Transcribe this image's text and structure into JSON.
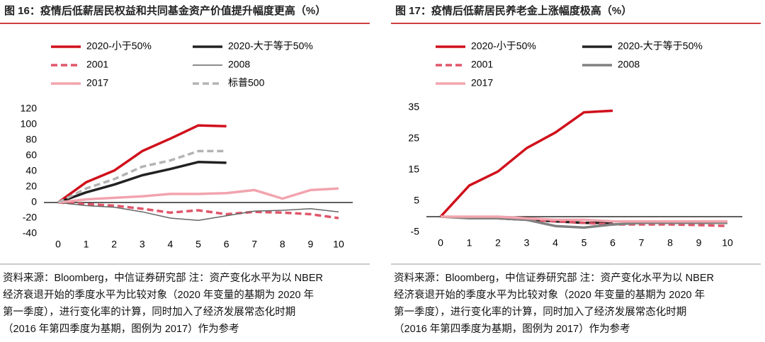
{
  "chart_data": [
    {
      "type": "line",
      "title": "图 16：疫情后低薪居民权益和共同基金资产价值提升幅度更高（%）",
      "x": [
        0,
        1,
        2,
        3,
        4,
        5,
        6,
        7,
        8,
        9,
        10
      ],
      "xlim": [
        0,
        10
      ],
      "xticks": [
        0,
        1,
        2,
        3,
        4,
        5,
        6,
        7,
        8,
        9,
        10
      ],
      "ylim": [
        -40,
        120
      ],
      "yticks": [
        -40,
        -20,
        0,
        20,
        40,
        60,
        80,
        100,
        120
      ],
      "series": [
        {
          "name": "2020-小于50%",
          "color": "#d0101b",
          "dash": "solid",
          "width": 3.5,
          "values": [
            0,
            26,
            41,
            66,
            82,
            99,
            98,
            null,
            null,
            null,
            null
          ]
        },
        {
          "name": "2020-大于等于50%",
          "color": "#222222",
          "dash": "solid",
          "width": 3.5,
          "values": [
            0,
            13,
            23,
            35,
            43,
            52,
            51,
            null,
            null,
            null,
            null
          ]
        },
        {
          "name": "2001",
          "color": "#e0566a",
          "dash": "dashed",
          "width": 3.5,
          "values": [
            0,
            -2,
            -4,
            -8,
            -13,
            -10,
            -15,
            -12,
            -13,
            -15,
            -20
          ]
        },
        {
          "name": "2008",
          "color": "#666666",
          "dash": "solid",
          "width": 1.5,
          "values": [
            0,
            -4,
            -6,
            -12,
            -20,
            -23,
            -17,
            -11,
            -10,
            -8,
            -12
          ]
        },
        {
          "name": "2017",
          "color": "#f2a4ae",
          "dash": "solid",
          "width": 3.5,
          "values": [
            0,
            4,
            6,
            8,
            11,
            11,
            12,
            16,
            5,
            16,
            18
          ]
        },
        {
          "name": "标普500",
          "color": "#b3b3b3",
          "dash": "dashed",
          "width": 3.5,
          "values": [
            0,
            18,
            30,
            46,
            54,
            66,
            66,
            null,
            null,
            null,
            null
          ]
        }
      ],
      "note": [
        "资料来源：Bloomberg，中信证券研究部 注：资产变化水平为以 NBER",
        "经济衰退开始的季度水平为比较对象（2020 年变量的基期为 2020 年",
        "第一季度），进行变化率的计算，同时加入了经济发展常态化时期",
        "（2016 年第四季度为基期，图例为 2017）作为参考"
      ]
    },
    {
      "type": "line",
      "title": "图 17：疫情后低薪居民养老金上涨幅度极高（%）",
      "x": [
        0,
        1,
        2,
        3,
        4,
        5,
        6,
        7,
        8,
        9,
        10
      ],
      "xlim": [
        0,
        10
      ],
      "xticks": [
        0,
        1,
        2,
        3,
        4,
        5,
        6,
        7,
        8,
        9,
        10
      ],
      "ylim": [
        -5,
        35
      ],
      "yticks": [
        -5,
        5,
        15,
        25,
        35
      ],
      "series": [
        {
          "name": "2020-小于50%",
          "color": "#d0101b",
          "dash": "solid",
          "width": 3.5,
          "values": [
            0,
            10,
            14.5,
            22,
            27,
            33.5,
            34,
            null,
            null,
            null,
            null
          ]
        },
        {
          "name": "2020-大于等于50%",
          "color": "#222222",
          "dash": "solid",
          "width": 3.5,
          "values": [
            0,
            -0.3,
            -0.5,
            -1,
            -1.5,
            -2,
            -2,
            null,
            null,
            null,
            null
          ]
        },
        {
          "name": "2001",
          "color": "#e0566a",
          "dash": "dashed",
          "width": 3.5,
          "values": [
            0,
            -0.3,
            -0.5,
            -1,
            -1.5,
            -2,
            -2.5,
            -2.5,
            -2.5,
            -2.7,
            -3
          ]
        },
        {
          "name": "2008",
          "color": "#808080",
          "dash": "solid",
          "width": 3.5,
          "values": [
            0,
            -0.5,
            -0.5,
            -1,
            -3,
            -3.5,
            -2.5,
            -2,
            -2,
            -2,
            -2
          ]
        },
        {
          "name": "2017",
          "color": "#f2a4ae",
          "dash": "solid",
          "width": 3.5,
          "values": [
            0,
            0,
            0,
            -0.5,
            -1,
            -1,
            -1.5,
            -1.5,
            -1.5,
            -1.5,
            -1.5
          ]
        }
      ],
      "note": [
        "资料来源：Bloomberg，中信证券研究部 注：资产变化水平为以 NBER",
        "经济衰退开始的季度水平为比较对象（2020 年变量的基期为 2020 年",
        "第一季度），进行变化率的计算，同时加入了经济发展常态化时期",
        "（2016 年第四季度为基期，图例为 2017）作为参考"
      ]
    }
  ]
}
